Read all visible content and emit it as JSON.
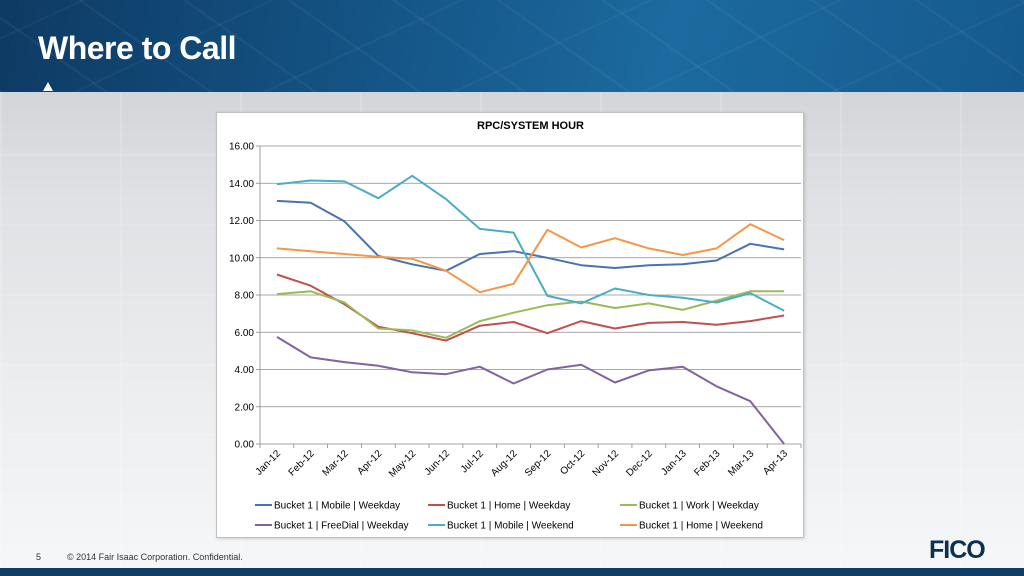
{
  "slide": {
    "title": "Where to Call",
    "page_number": "5",
    "copyright": "© 2014 Fair Isaac Corporation. Confidential.",
    "logo_text": "FICO"
  },
  "chart_data": {
    "type": "line",
    "title": "RPC/SYSTEM HOUR",
    "xlabel": "",
    "ylabel": "",
    "categories": [
      "Jan-12",
      "Feb-12",
      "Mar-12",
      "Apr-12",
      "May-12",
      "Jun-12",
      "Jul-12",
      "Aug-12",
      "Sep-12",
      "Oct-12",
      "Nov-12",
      "Dec-12",
      "Jan-13",
      "Feb-13",
      "Mar-13",
      "Apr-13"
    ],
    "ylim": [
      0,
      16
    ],
    "yticks": [
      "0.00",
      "2.00",
      "4.00",
      "6.00",
      "8.00",
      "10.00",
      "12.00",
      "14.00",
      "16.00"
    ],
    "grid": true,
    "legend_position": "bottom",
    "series": [
      {
        "name": "Bucket 1 | Mobile | Weekday",
        "color": "#4a72b0",
        "values": [
          13.05,
          12.95,
          11.95,
          10.1,
          9.65,
          9.3,
          10.2,
          10.35,
          10.0,
          9.6,
          9.45,
          9.6,
          9.65,
          9.85,
          10.75,
          10.45
        ]
      },
      {
        "name": "Bucket 1 | Home | Weekday",
        "color": "#c0504d",
        "values": [
          9.1,
          8.5,
          7.5,
          6.3,
          5.95,
          5.55,
          6.35,
          6.55,
          5.95,
          6.6,
          6.2,
          6.5,
          6.55,
          6.4,
          6.6,
          6.9
        ]
      },
      {
        "name": "Bucket 1 | Work | Weekday",
        "color": "#9bbb59",
        "values": [
          8.05,
          8.2,
          7.6,
          6.2,
          6.1,
          5.7,
          6.6,
          7.05,
          7.45,
          7.65,
          7.3,
          7.55,
          7.2,
          7.7,
          8.2,
          8.2
        ]
      },
      {
        "name": "Bucket 1 | FreeDial | Weekday",
        "color": "#8064a2",
        "values": [
          5.75,
          4.65,
          4.4,
          4.2,
          3.85,
          3.75,
          4.15,
          3.25,
          4.0,
          4.25,
          3.3,
          3.95,
          4.15,
          3.1,
          2.3,
          0.0
        ]
      },
      {
        "name": "Bucket 1 | Mobile | Weekend",
        "color": "#4bacc6",
        "values": [
          13.95,
          14.15,
          14.1,
          13.2,
          14.4,
          13.15,
          11.55,
          11.35,
          7.95,
          7.55,
          8.35,
          8.0,
          7.85,
          7.6,
          8.1,
          7.15
        ]
      },
      {
        "name": "Bucket 1 | Home | Weekend",
        "color": "#f79646",
        "values": [
          10.5,
          10.35,
          10.2,
          10.05,
          9.95,
          9.3,
          8.15,
          8.6,
          11.5,
          10.55,
          11.05,
          10.5,
          10.15,
          10.5,
          11.8,
          10.95
        ]
      }
    ]
  }
}
